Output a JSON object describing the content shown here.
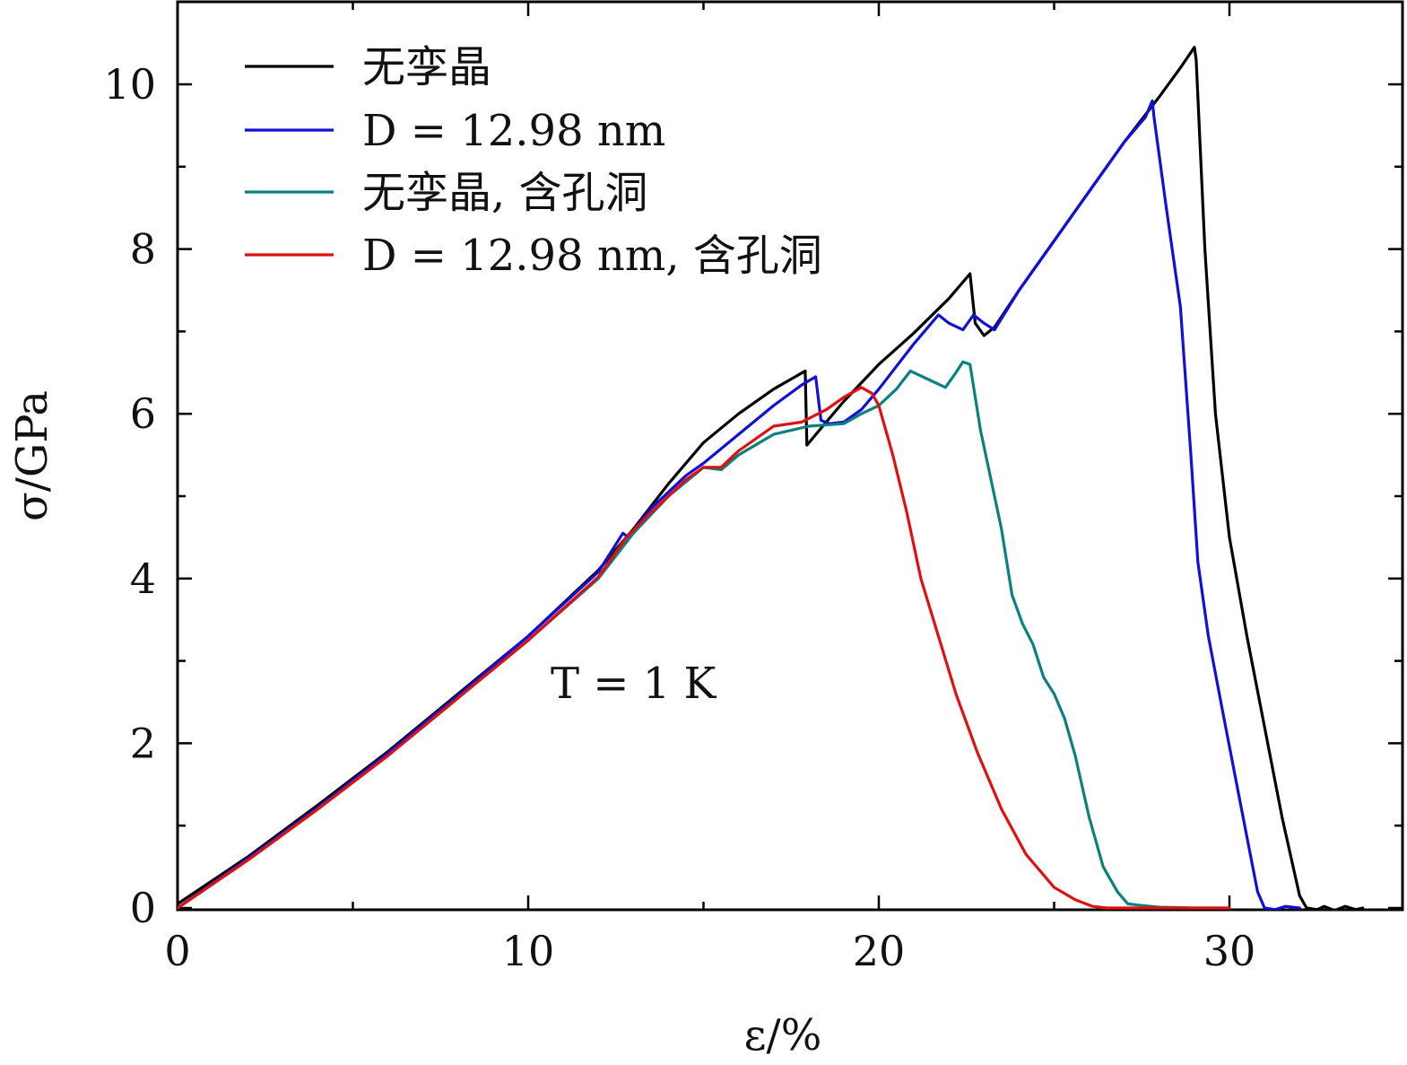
{
  "chart_data": {
    "type": "line",
    "xlabel": "ε/%",
    "ylabel": "σ/GPa",
    "xlim": [
      0,
      35
    ],
    "ylim": [
      0,
      11
    ],
    "xticks": [
      0,
      10,
      20,
      30
    ],
    "xminor": [
      5,
      15,
      25
    ],
    "yticks": [
      0,
      2,
      4,
      6,
      8,
      10
    ],
    "yminor": [
      1,
      3,
      5,
      7,
      9
    ],
    "grid": false,
    "legend_position": "top-left",
    "annotation": "T = 1 K",
    "series": [
      {
        "name": "无孪晶",
        "color": "#000000",
        "points": [
          [
            0,
            0.05
          ],
          [
            2,
            0.62
          ],
          [
            4,
            1.25
          ],
          [
            6,
            1.9
          ],
          [
            8,
            2.6
          ],
          [
            10,
            3.3
          ],
          [
            12,
            4.1
          ],
          [
            13,
            4.6
          ],
          [
            14,
            5.15
          ],
          [
            15,
            5.65
          ],
          [
            16,
            6.0
          ],
          [
            17,
            6.3
          ],
          [
            17.9,
            6.52
          ],
          [
            17.95,
            5.62
          ],
          [
            18.5,
            5.9
          ],
          [
            19,
            6.15
          ],
          [
            20,
            6.6
          ],
          [
            21,
            6.98
          ],
          [
            22,
            7.4
          ],
          [
            22.6,
            7.7
          ],
          [
            22.75,
            7.1
          ],
          [
            23.0,
            6.95
          ],
          [
            23.3,
            7.05
          ],
          [
            24,
            7.5
          ],
          [
            25,
            8.1
          ],
          [
            26,
            8.7
          ],
          [
            27,
            9.3
          ],
          [
            28,
            9.85
          ],
          [
            28.6,
            10.2
          ],
          [
            29,
            10.45
          ],
          [
            29.05,
            10.3
          ],
          [
            29.3,
            8.0
          ],
          [
            29.6,
            6.0
          ],
          [
            30,
            4.5
          ],
          [
            30.5,
            3.3
          ],
          [
            31,
            2.2
          ],
          [
            31.5,
            1.1
          ],
          [
            32,
            0.15
          ],
          [
            32.2,
            0.0
          ],
          [
            32.5,
            -0.02
          ],
          [
            32.7,
            0.02
          ],
          [
            33,
            -0.03
          ],
          [
            33.3,
            0.02
          ],
          [
            33.6,
            -0.02
          ],
          [
            33.8,
            0.0
          ]
        ]
      },
      {
        "name": "D = 12.98 nm",
        "color": "#1010d8",
        "points": [
          [
            0,
            0.0
          ],
          [
            2,
            0.6
          ],
          [
            4,
            1.22
          ],
          [
            6,
            1.88
          ],
          [
            8,
            2.58
          ],
          [
            10,
            3.3
          ],
          [
            12,
            4.08
          ],
          [
            12.7,
            4.55
          ],
          [
            12.85,
            4.5
          ],
          [
            13.5,
            4.85
          ],
          [
            14.5,
            5.25
          ],
          [
            15,
            5.4
          ],
          [
            16,
            5.75
          ],
          [
            17,
            6.1
          ],
          [
            17.8,
            6.35
          ],
          [
            18.2,
            6.45
          ],
          [
            18.35,
            5.92
          ],
          [
            18.6,
            5.88
          ],
          [
            19,
            5.9
          ],
          [
            19.5,
            6.05
          ],
          [
            20,
            6.3
          ],
          [
            21,
            6.85
          ],
          [
            21.7,
            7.2
          ],
          [
            22,
            7.1
          ],
          [
            22.4,
            7.02
          ],
          [
            22.7,
            7.2
          ],
          [
            23,
            7.1
          ],
          [
            23.3,
            7.02
          ],
          [
            24,
            7.5
          ],
          [
            25,
            8.1
          ],
          [
            26,
            8.7
          ],
          [
            27,
            9.3
          ],
          [
            27.6,
            9.6
          ],
          [
            27.8,
            9.8
          ],
          [
            27.85,
            9.6
          ],
          [
            28.2,
            8.5
          ],
          [
            28.6,
            7.3
          ],
          [
            28.9,
            5.5
          ],
          [
            29.1,
            4.2
          ],
          [
            29.4,
            3.3
          ],
          [
            29.8,
            2.4
          ],
          [
            30.3,
            1.3
          ],
          [
            30.8,
            0.2
          ],
          [
            31.0,
            0.0
          ],
          [
            31.3,
            -0.02
          ],
          [
            31.6,
            0.02
          ],
          [
            32.0,
            0.0
          ]
        ]
      },
      {
        "name": "无孪晶, 含孔洞",
        "color": "#0a8080",
        "points": [
          [
            0,
            0.0
          ],
          [
            2,
            0.58
          ],
          [
            4,
            1.2
          ],
          [
            6,
            1.85
          ],
          [
            8,
            2.55
          ],
          [
            10,
            3.25
          ],
          [
            12,
            4.0
          ],
          [
            13,
            4.55
          ],
          [
            14,
            5.0
          ],
          [
            15,
            5.35
          ],
          [
            15.5,
            5.32
          ],
          [
            16,
            5.5
          ],
          [
            17,
            5.75
          ],
          [
            18,
            5.85
          ],
          [
            19,
            5.88
          ],
          [
            19.5,
            6.0
          ],
          [
            20,
            6.1
          ],
          [
            20.5,
            6.3
          ],
          [
            20.9,
            6.52
          ],
          [
            21.5,
            6.4
          ],
          [
            21.9,
            6.32
          ],
          [
            22.2,
            6.5
          ],
          [
            22.4,
            6.63
          ],
          [
            22.6,
            6.6
          ],
          [
            22.9,
            5.8
          ],
          [
            23.2,
            5.2
          ],
          [
            23.5,
            4.6
          ],
          [
            23.8,
            3.8
          ],
          [
            24.1,
            3.45
          ],
          [
            24.4,
            3.2
          ],
          [
            24.7,
            2.8
          ],
          [
            25,
            2.6
          ],
          [
            25.3,
            2.3
          ],
          [
            25.6,
            1.85
          ],
          [
            26,
            1.1
          ],
          [
            26.4,
            0.5
          ],
          [
            26.8,
            0.2
          ],
          [
            27.1,
            0.05
          ],
          [
            27.5,
            0.03
          ],
          [
            28,
            0.01
          ],
          [
            29,
            0.0
          ],
          [
            30,
            0.0
          ]
        ]
      },
      {
        "name": "D = 12.98 nm, 含孔洞",
        "color": "#e01010",
        "points": [
          [
            0,
            0.0
          ],
          [
            2,
            0.58
          ],
          [
            4,
            1.2
          ],
          [
            6,
            1.85
          ],
          [
            8,
            2.55
          ],
          [
            10,
            3.25
          ],
          [
            12,
            4.02
          ],
          [
            12.8,
            4.5
          ],
          [
            13.5,
            4.8
          ],
          [
            14.5,
            5.2
          ],
          [
            15,
            5.35
          ],
          [
            15.5,
            5.35
          ],
          [
            16,
            5.55
          ],
          [
            17,
            5.85
          ],
          [
            17.8,
            5.9
          ],
          [
            18.5,
            6.05
          ],
          [
            19,
            6.2
          ],
          [
            19.5,
            6.32
          ],
          [
            19.8,
            6.25
          ],
          [
            20,
            6.1
          ],
          [
            20.4,
            5.5
          ],
          [
            20.8,
            4.8
          ],
          [
            21.2,
            4.0
          ],
          [
            21.7,
            3.3
          ],
          [
            22.2,
            2.6
          ],
          [
            22.8,
            1.9
          ],
          [
            23.5,
            1.2
          ],
          [
            24.2,
            0.65
          ],
          [
            25,
            0.25
          ],
          [
            25.6,
            0.1
          ],
          [
            26.1,
            0.02
          ],
          [
            26.5,
            0.0
          ],
          [
            28,
            0.0
          ],
          [
            30,
            0.0
          ]
        ]
      }
    ]
  }
}
